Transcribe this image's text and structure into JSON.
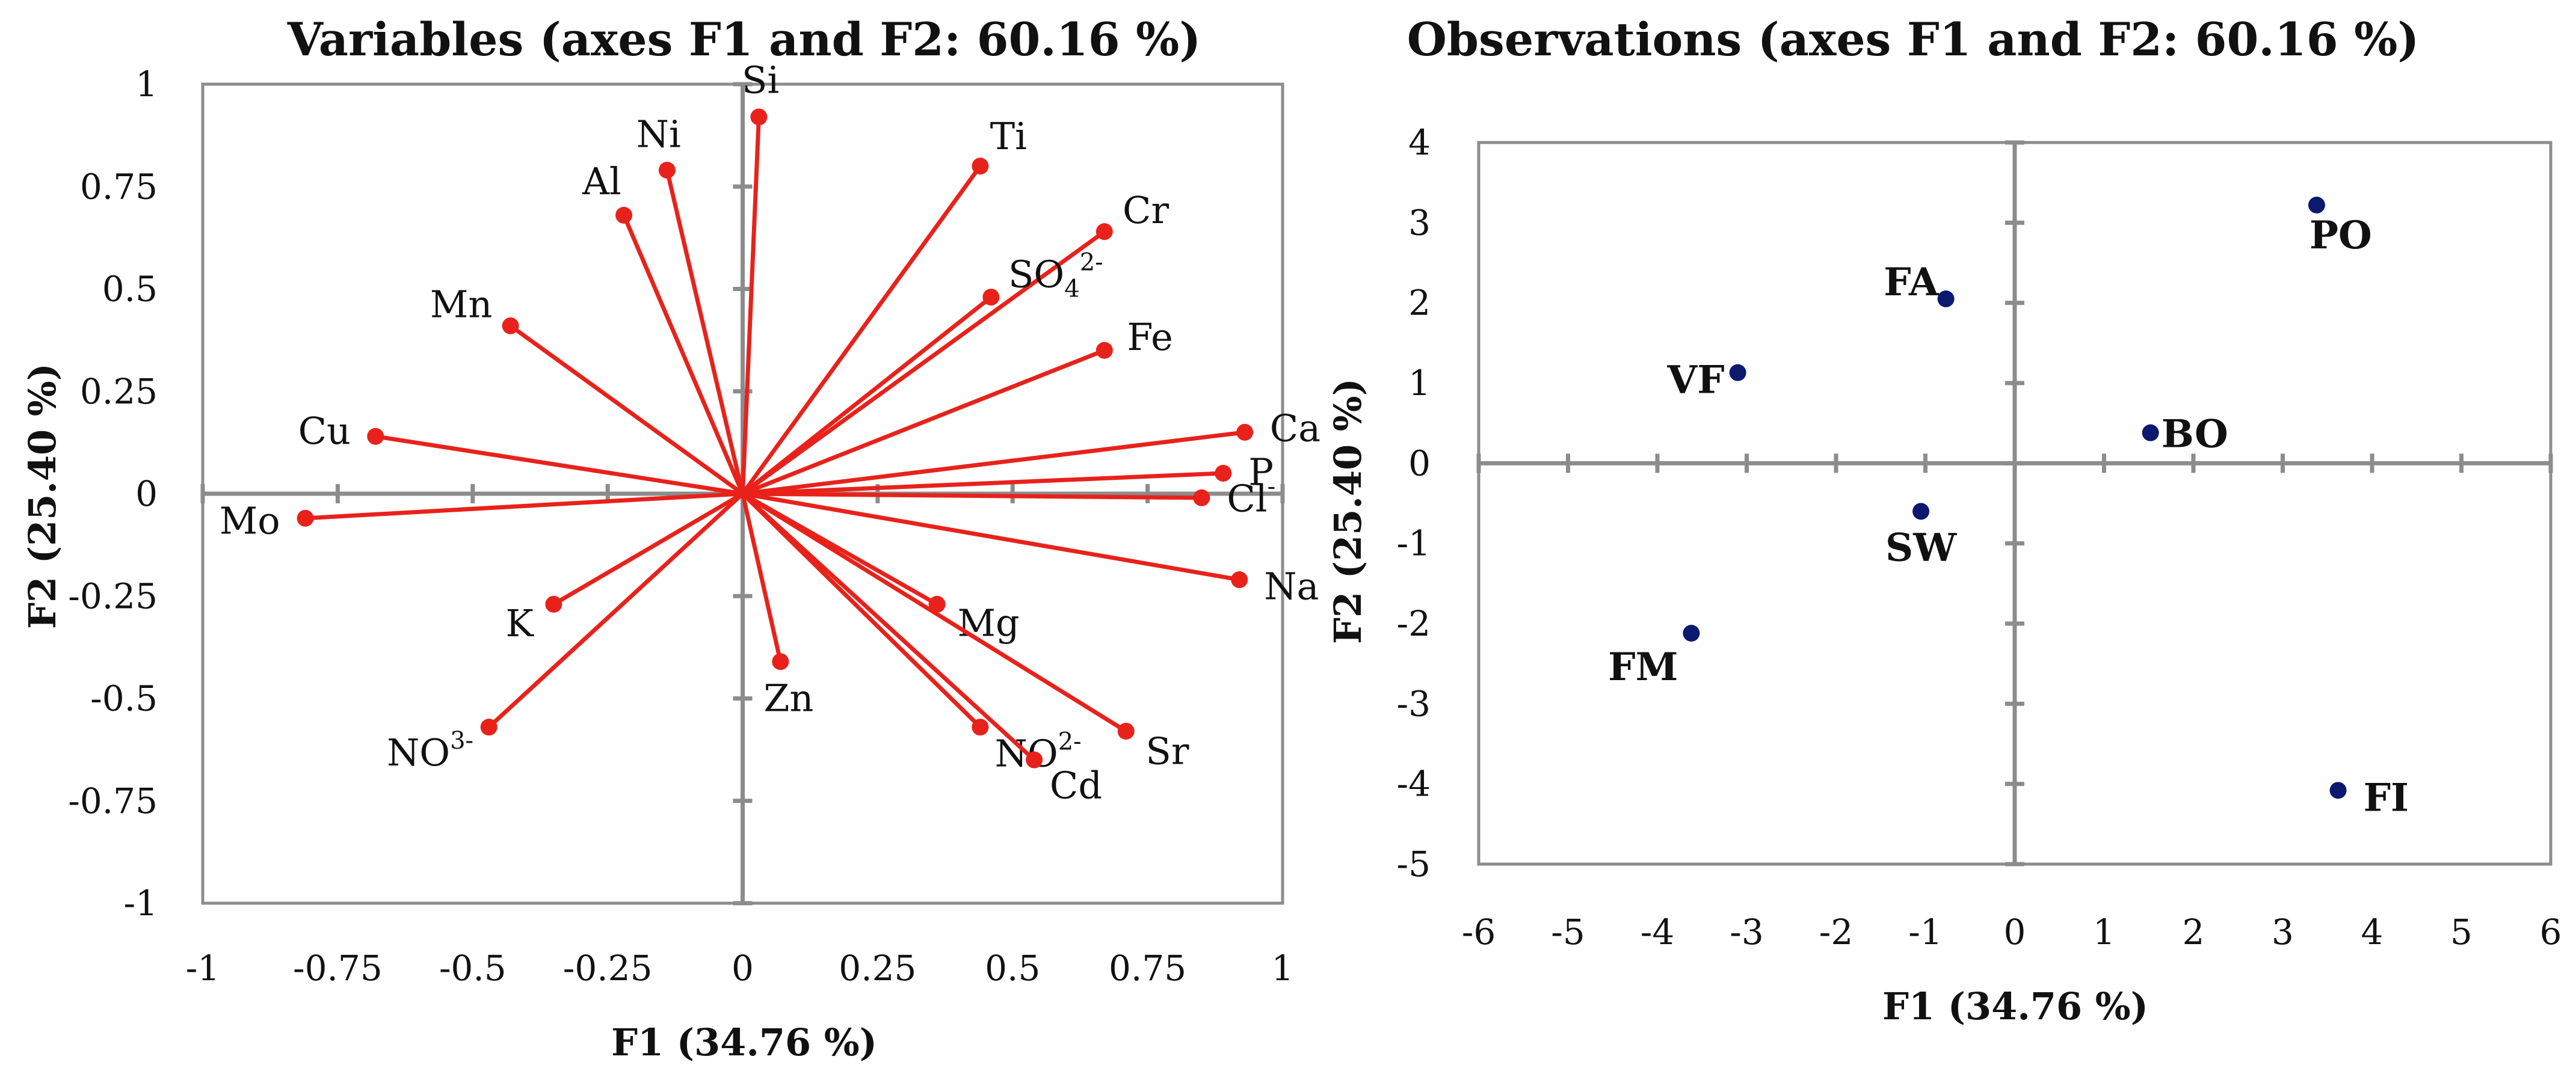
{
  "chart_data": [
    {
      "type": "scatter",
      "subtype": "pca-variable-loadings",
      "title": "Variables (axes F1 and F2: 60.16 %)",
      "xlabel": "F1 (34.76 %)",
      "ylabel": "F2 (25.40 %)",
      "xlim": [
        -1,
        1
      ],
      "ylim": [
        -1,
        1
      ],
      "xticks": [
        "-1",
        "-0.75",
        "-0.5",
        "-0.25",
        "0",
        "0.25",
        "0.5",
        "0.75",
        "1"
      ],
      "yticks": [
        "1",
        "0.75",
        "0.5",
        "0.25",
        "0",
        "-0.25",
        "-0.5",
        "-0.75",
        "-1"
      ],
      "vector_color": "#e8221b",
      "axis_color": "#8c8c8c",
      "points": [
        {
          "label": "Si",
          "sup": "",
          "x": 0.03,
          "y": 0.92
        },
        {
          "label": "Ni",
          "sup": "",
          "x": -0.14,
          "y": 0.79
        },
        {
          "label": "Al",
          "sup": "",
          "x": -0.22,
          "y": 0.68
        },
        {
          "label": "Ti",
          "sup": "",
          "x": 0.44,
          "y": 0.8
        },
        {
          "label": "Cr",
          "sup": "",
          "x": 0.67,
          "y": 0.64
        },
        {
          "label": "SO",
          "sub": "4",
          "sup": "2-",
          "x": 0.46,
          "y": 0.48
        },
        {
          "label": "Fe",
          "sup": "",
          "x": 0.67,
          "y": 0.35
        },
        {
          "label": "Mn",
          "sup": "",
          "x": -0.43,
          "y": 0.41
        },
        {
          "label": "Cu",
          "sup": "",
          "x": -0.68,
          "y": 0.14
        },
        {
          "label": "Ca",
          "sup": "",
          "x": 0.93,
          "y": 0.15
        },
        {
          "label": "P",
          "sup": "",
          "x": 0.89,
          "y": 0.05
        },
        {
          "label": "Cl",
          "sup": "-",
          "x": 0.85,
          "y": -0.01
        },
        {
          "label": "Mo",
          "sup": "",
          "x": -0.81,
          "y": -0.06
        },
        {
          "label": "Na",
          "sup": "",
          "x": 0.92,
          "y": -0.21
        },
        {
          "label": "K",
          "sup": "",
          "x": -0.35,
          "y": -0.27
        },
        {
          "label": "Mg",
          "sup": "",
          "x": 0.36,
          "y": -0.27
        },
        {
          "label": "Zn",
          "sup": "",
          "x": 0.07,
          "y": -0.41
        },
        {
          "label": "NO",
          "sup": "2-",
          "x": 0.44,
          "y": -0.57
        },
        {
          "label": "Cd",
          "sup": "",
          "x": 0.54,
          "y": -0.65
        },
        {
          "label": "Sr",
          "sup": "",
          "x": 0.71,
          "y": -0.58
        },
        {
          "label": "NO",
          "sup": "3-",
          "x": -0.47,
          "y": -0.57
        }
      ]
    },
    {
      "type": "scatter",
      "subtype": "pca-observation-scores",
      "title": "Observations (axes F1 and F2: 60.16 %)",
      "xlabel": "F1 (34.76 %)",
      "ylabel": "F2 (25.40 %)",
      "xlim": [
        -6,
        6
      ],
      "ylim": [
        -5,
        4
      ],
      "xticks": [
        "-6",
        "-5",
        "-4",
        "-3",
        "-2",
        "-1",
        "0",
        "1",
        "2",
        "3",
        "4",
        "5",
        "6"
      ],
      "yticks": [
        "4",
        "3",
        "2",
        "1",
        "0",
        "-1",
        "-2",
        "-3",
        "-4",
        "-5"
      ],
      "point_color": "#0b1a6e",
      "axis_color": "#8c8c8c",
      "points": [
        {
          "label": "PO",
          "x": 3.38,
          "y": 3.22
        },
        {
          "label": "FA",
          "x": -0.77,
          "y": 2.05
        },
        {
          "label": "VF",
          "x": -3.1,
          "y": 1.13
        },
        {
          "label": "BO",
          "x": 1.52,
          "y": 0.38
        },
        {
          "label": "SW",
          "x": -1.05,
          "y": -0.6
        },
        {
          "label": "FM",
          "x": -3.62,
          "y": -2.12
        },
        {
          "label": "FI",
          "x": 3.62,
          "y": -4.08
        }
      ]
    }
  ]
}
